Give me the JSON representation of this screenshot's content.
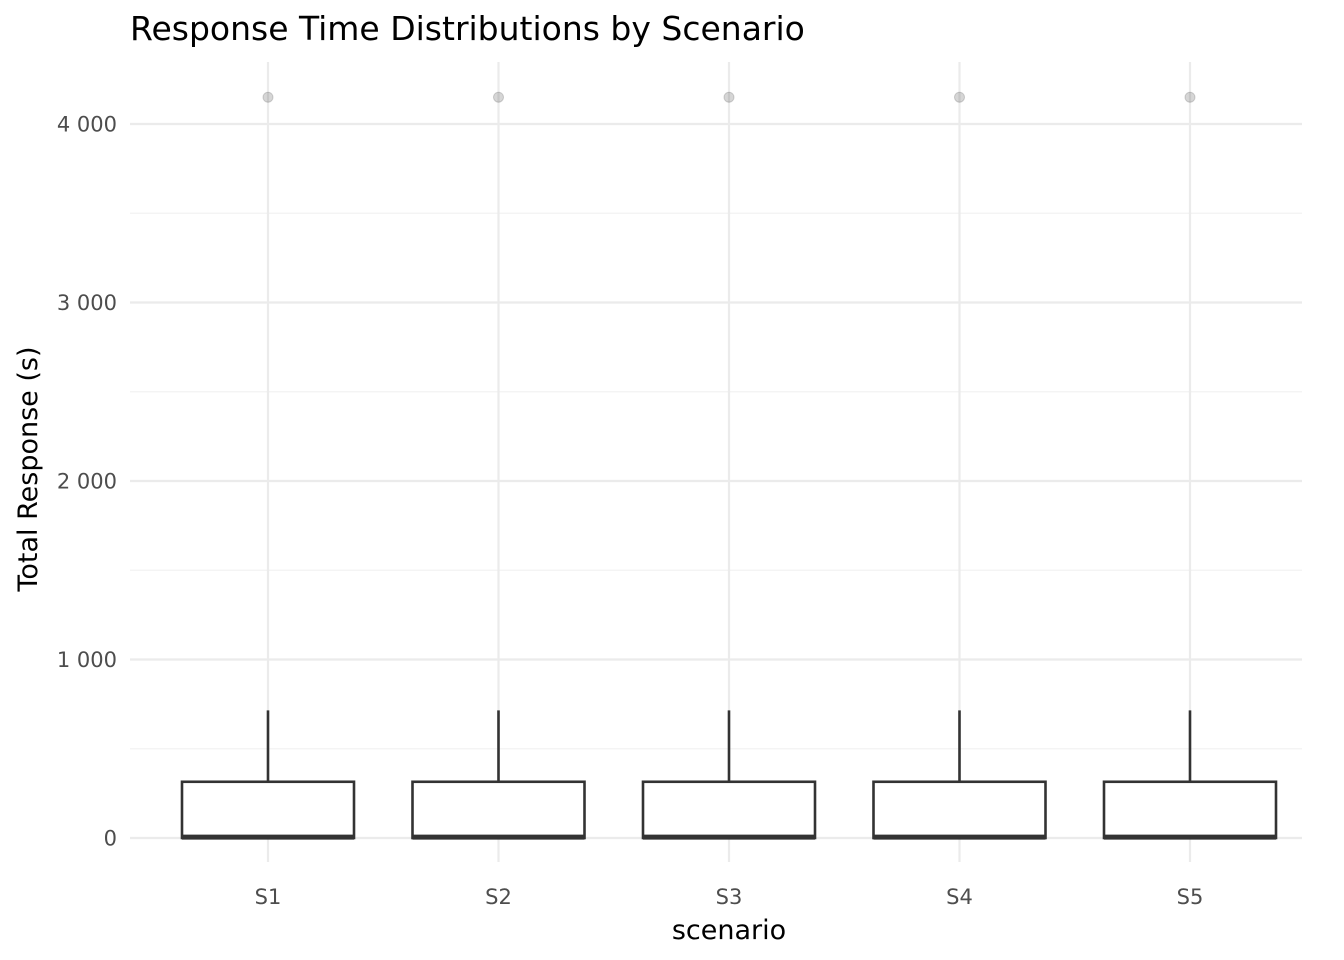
{
  "chart_data": {
    "type": "box",
    "title": "Response Time Distributions by Scenario",
    "xlabel": "scenario",
    "ylabel": "Total Response (s)",
    "categories": [
      "S1",
      "S2",
      "S3",
      "S4",
      "S5"
    ],
    "ylim": [
      -170,
      4350
    ],
    "yticks": [
      0,
      1000,
      2000,
      3000,
      4000
    ],
    "ytick_labels": [
      "0",
      "1 000",
      "2 000",
      "3 000",
      "4 000"
    ],
    "boxes": [
      {
        "category": "S1",
        "whisker_low": 0,
        "q1": 0,
        "median": 5,
        "q3": 315,
        "whisker_high": 715,
        "outliers": [
          4150
        ]
      },
      {
        "category": "S2",
        "whisker_low": 0,
        "q1": 0,
        "median": 5,
        "q3": 315,
        "whisker_high": 715,
        "outliers": [
          4150
        ]
      },
      {
        "category": "S3",
        "whisker_low": 0,
        "q1": 0,
        "median": 5,
        "q3": 315,
        "whisker_high": 715,
        "outliers": [
          4150
        ]
      },
      {
        "category": "S4",
        "whisker_low": 0,
        "q1": 0,
        "median": 5,
        "q3": 315,
        "whisker_high": 715,
        "outliers": [
          4150
        ]
      },
      {
        "category": "S5",
        "whisker_low": 0,
        "q1": 0,
        "median": 5,
        "q3": 315,
        "whisker_high": 715,
        "outliers": [
          4150
        ]
      }
    ],
    "grid": true
  }
}
